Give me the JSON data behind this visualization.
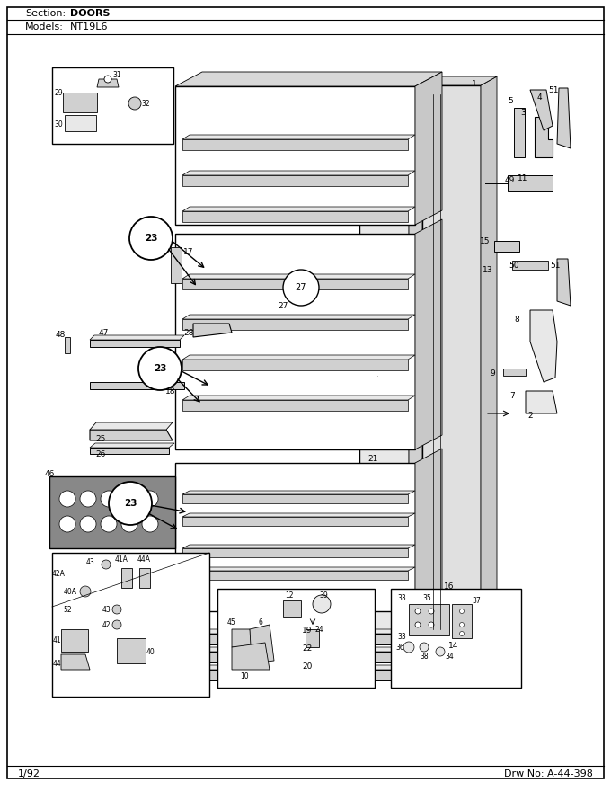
{
  "section_label": "Section:",
  "section_value": "DOORS",
  "models_label": "Models:",
  "models_value": "NT19L6",
  "date_label": "1/92",
  "drw_label": "Drw No: A-44-398",
  "bg_color": "#ffffff",
  "line_color": "#000000",
  "fig_width": 6.8,
  "fig_height": 8.8,
  "dpi": 100
}
